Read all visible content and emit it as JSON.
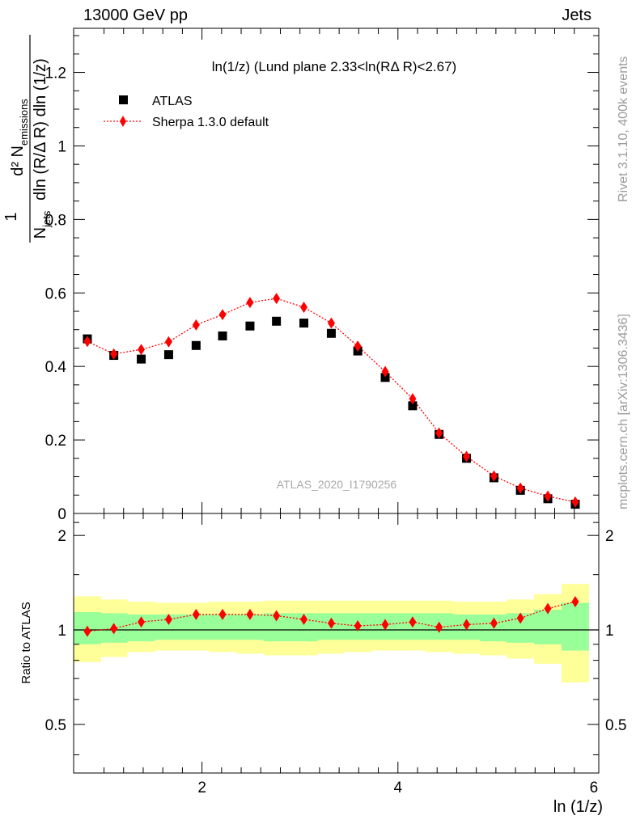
{
  "header": {
    "energy": "13000 GeV pp",
    "category": "Jets",
    "rivet": "Rivet 3.1.10,  400k events",
    "mcplots": "mcplots.cern.ch [arXiv:1306.3436]",
    "analysis_id": "ATLAS_2020_I1790256"
  },
  "chart_data": [
    {
      "type": "scatter",
      "title": "ln(1/z) (Lund plane 2.33<ln(RΔ R)<2.67)",
      "xlabel": "ln (1/z)",
      "ylabel": "1/N_jets d²N_emissions / dln(R/ΔR) dln(1/z)",
      "xlim": [
        0.69,
        6.05
      ],
      "ylim": [
        0,
        1.32
      ],
      "x_ticks": [
        "2",
        "4",
        "6"
      ],
      "y_ticks": [
        "0",
        "0.2",
        "0.4",
        "0.6",
        "0.8",
        "1",
        "1.2"
      ],
      "legend_position": "top-left",
      "x": [
        0.83,
        1.1,
        1.38,
        1.66,
        1.94,
        2.21,
        2.49,
        2.76,
        3.04,
        3.32,
        3.59,
        3.87,
        4.15,
        4.42,
        4.7,
        4.98,
        5.25,
        5.53,
        5.81
      ],
      "series": [
        {
          "name": "ATLAS",
          "color": "#000000",
          "marker": "square",
          "values": [
            0.475,
            0.43,
            0.42,
            0.432,
            0.457,
            0.483,
            0.51,
            0.523,
            0.518,
            0.49,
            0.442,
            0.37,
            0.293,
            0.215,
            0.15,
            0.097,
            0.063,
            0.04,
            0.025
          ]
        },
        {
          "name": "Sherpa 1.3.0 default",
          "color": "#ff0000",
          "marker": "diamond",
          "line": "dotted",
          "values": [
            0.468,
            0.434,
            0.446,
            0.467,
            0.513,
            0.541,
            0.574,
            0.585,
            0.561,
            0.518,
            0.455,
            0.386,
            0.312,
            0.219,
            0.155,
            0.102,
            0.069,
            0.047,
            0.031
          ]
        }
      ]
    },
    {
      "type": "line",
      "xlabel": "ln (1/z)",
      "ylabel": "Ratio to ATLAS",
      "xlim": [
        0.69,
        6.05
      ],
      "ylim": [
        0.35,
        2.35
      ],
      "y_ticks": [
        "0.5",
        "1",
        "2"
      ],
      "x_edges": [
        0.69,
        0.97,
        1.24,
        1.52,
        1.8,
        2.07,
        2.35,
        2.63,
        2.9,
        3.18,
        3.45,
        3.73,
        4.01,
        4.28,
        4.56,
        4.84,
        5.11,
        5.39,
        5.67,
        5.95
      ],
      "band_yellow": {
        "lo": [
          0.79,
          0.82,
          0.85,
          0.86,
          0.86,
          0.85,
          0.84,
          0.83,
          0.83,
          0.84,
          0.85,
          0.86,
          0.86,
          0.85,
          0.84,
          0.83,
          0.81,
          0.78,
          0.68
        ],
        "hi": [
          1.28,
          1.25,
          1.23,
          1.22,
          1.22,
          1.23,
          1.23,
          1.24,
          1.24,
          1.24,
          1.24,
          1.24,
          1.24,
          1.24,
          1.23,
          1.23,
          1.25,
          1.3,
          1.4
        ]
      },
      "band_green": {
        "lo": [
          0.9,
          0.91,
          0.92,
          0.93,
          0.93,
          0.93,
          0.93,
          0.92,
          0.92,
          0.93,
          0.93,
          0.93,
          0.93,
          0.93,
          0.93,
          0.92,
          0.91,
          0.9,
          0.86
        ],
        "hi": [
          1.14,
          1.13,
          1.12,
          1.12,
          1.12,
          1.12,
          1.12,
          1.13,
          1.13,
          1.13,
          1.13,
          1.13,
          1.13,
          1.13,
          1.12,
          1.12,
          1.13,
          1.16,
          1.22
        ]
      },
      "ratio_x": [
        0.83,
        1.1,
        1.38,
        1.66,
        1.94,
        2.21,
        2.49,
        2.76,
        3.04,
        3.32,
        3.59,
        3.87,
        4.15,
        4.42,
        4.7,
        4.98,
        5.25,
        5.53,
        5.81
      ],
      "ratio": [
        0.99,
        1.01,
        1.06,
        1.08,
        1.12,
        1.12,
        1.12,
        1.11,
        1.08,
        1.05,
        1.03,
        1.04,
        1.06,
        1.02,
        1.04,
        1.05,
        1.09,
        1.17,
        1.23
      ]
    }
  ]
}
